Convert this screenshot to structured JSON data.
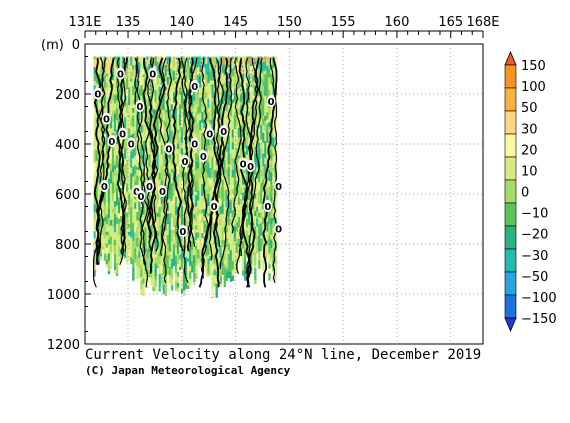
{
  "chart_data": {
    "type": "heatmap",
    "title": "Current Velocity along 24°N line, December 2019",
    "credit": "(C) Japan Meteorological Agency",
    "y_unit": "(m)",
    "x_ticks": [
      "131E",
      "135",
      "140",
      "145",
      "150",
      "155",
      "160",
      "165",
      "168E"
    ],
    "x_tick_values": [
      131,
      135,
      140,
      145,
      150,
      155,
      160,
      165,
      168
    ],
    "xlim": [
      131,
      168
    ],
    "y_ticks": [
      "0",
      "200",
      "400",
      "600",
      "800",
      "1000",
      "1200"
    ],
    "y_tick_values": [
      0,
      200,
      400,
      600,
      800,
      1000,
      1200
    ],
    "ylim": [
      0,
      1200
    ],
    "y_inverted": true,
    "data_extent": {
      "lon_min": 131.8,
      "lon_max": 148.8,
      "depth_min": 50,
      "depth_max": 1100
    },
    "colorbar": {
      "levels": [
        -150,
        -100,
        -50,
        -30,
        -20,
        -10,
        0,
        10,
        20,
        30,
        50,
        100,
        150
      ],
      "labels": [
        "150",
        "100",
        "50",
        "30",
        "20",
        "10",
        "0",
        "−10",
        "−20",
        "−30",
        "−50",
        "−100",
        "−150"
      ],
      "colors_top_to_bottom": [
        "#f05a28",
        "#f7941d",
        "#fbb040",
        "#fdd880",
        "#fff6a0",
        "#d4ec80",
        "#a6db68",
        "#5cc45a",
        "#2bb27a",
        "#21bcb0",
        "#29a4e0",
        "#1a73e0",
        "#2438d8"
      ]
    },
    "contour_labels": [
      "0",
      "0",
      "0",
      "0",
      "0",
      "0",
      "0",
      "0",
      "0",
      "0",
      "0",
      "0",
      "0",
      "0",
      "0",
      "0",
      "0",
      "0",
      "0",
      "0",
      "0",
      "0",
      "0",
      "0",
      "0",
      "0",
      "0",
      "0"
    ]
  }
}
